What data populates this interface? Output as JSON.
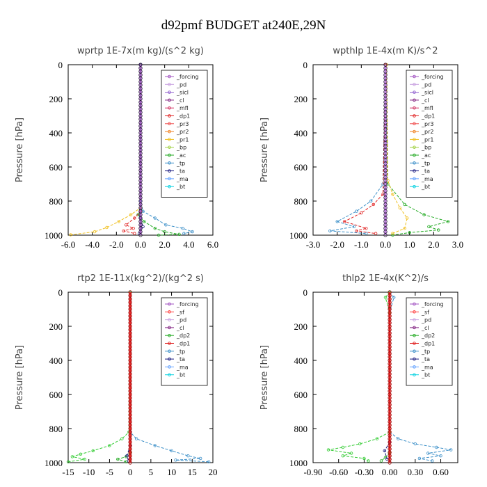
{
  "figure_title": "d92pmf  BUDGET at240E,29N",
  "chart_data": [
    {
      "type": "line",
      "title": "wprtp  1E-7x(m kg)/(s^2 kg)",
      "ylabel": "Pressure [hPa]",
      "xlim": [
        -6,
        6
      ],
      "ylim": [
        1000,
        0
      ],
      "xticks": [
        -6,
        -4,
        -2,
        0,
        2,
        4,
        6
      ],
      "xtick_labels": [
        "-6.0",
        "-4.0",
        "-2.0",
        "0.0",
        "2.0",
        "4.0",
        "6.0"
      ],
      "yticks": [
        0,
        200,
        400,
        600,
        800,
        1000
      ],
      "ytick_labels": [
        "0",
        "200",
        "400",
        "600",
        "800",
        "1000"
      ],
      "legend": [
        "_forcing",
        "_pd",
        "_sicl",
        "_cl",
        "_mfl",
        "_dp1",
        "_pr3",
        "_pr2",
        "_pr1",
        "_bp",
        "_ac",
        "_tp",
        "_ta",
        "_ma",
        "_bt"
      ],
      "series": [
        {
          "name": "_tp",
          "color": "#3b8fc8",
          "points": [
            [
              0,
              0
            ],
            [
              0,
              800
            ],
            [
              0.2,
              860
            ],
            [
              1.2,
              900
            ],
            [
              2.1,
              940
            ],
            [
              3.5,
              960
            ],
            [
              4.3,
              980
            ],
            [
              3.6,
              990
            ]
          ]
        },
        {
          "name": "_ac",
          "color": "#22aa22",
          "points": [
            [
              0,
              0
            ],
            [
              0,
              850
            ],
            [
              -0.2,
              880
            ],
            [
              0.3,
              920
            ],
            [
              1.2,
              960
            ],
            [
              2.0,
              980
            ],
            [
              3.2,
              995
            ],
            [
              1.5,
              1000
            ]
          ]
        },
        {
          "name": "_pr1",
          "color": "#f0c020",
          "points": [
            [
              0,
              0
            ],
            [
              0,
              840
            ],
            [
              -0.8,
              880
            ],
            [
              -1.8,
              920
            ],
            [
              -2.8,
              955
            ],
            [
              -3.8,
              980
            ],
            [
              -5.8,
              998
            ]
          ]
        },
        {
          "name": "_dp1",
          "color": "#e02020",
          "points": [
            [
              0,
              0
            ],
            [
              0,
              860
            ],
            [
              -0.5,
              900
            ],
            [
              -1.2,
              940
            ],
            [
              -0.6,
              960
            ],
            [
              -1.4,
              975
            ],
            [
              -0.5,
              990
            ]
          ]
        },
        {
          "name": "_ta",
          "color": "#1a1a80",
          "points": [
            [
              0,
              0
            ],
            [
              0,
              900
            ],
            [
              0.2,
              950
            ],
            [
              -0.1,
              990
            ]
          ]
        },
        {
          "name": "_forcing",
          "color": "#a060c0",
          "points": [
            [
              0,
              0
            ],
            [
              0,
              1000
            ]
          ]
        }
      ]
    },
    {
      "type": "line",
      "title": "wpthlp  1E-4x(m K)/s^2",
      "ylabel": "Pressure [hPa]",
      "xlim": [
        -3,
        3
      ],
      "ylim": [
        1000,
        0
      ],
      "xticks": [
        -3,
        -2,
        -1,
        0,
        1,
        2,
        3
      ],
      "xtick_labels": [
        "-3.0",
        "-2.0",
        "-1.0",
        "0.0",
        "1.0",
        "2.0",
        "3.0"
      ],
      "yticks": [
        0,
        200,
        400,
        600,
        800,
        1000
      ],
      "ytick_labels": [
        "0",
        "200",
        "400",
        "600",
        "800",
        "1000"
      ],
      "legend": [
        "_forcing",
        "_pd",
        "_sicl",
        "_cl",
        "_mfl",
        "_dp1",
        "_pr3",
        "_pr2",
        "_pr1",
        "_bp",
        "_ac",
        "_tp",
        "_ta",
        "_ma",
        "_bt"
      ],
      "series": [
        {
          "name": "_ac",
          "color": "#22aa22",
          "points": [
            [
              0,
              0
            ],
            [
              0.1,
              700
            ],
            [
              0.8,
              820
            ],
            [
              1.6,
              880
            ],
            [
              2.6,
              920
            ],
            [
              1.8,
              950
            ],
            [
              2.2,
              970
            ],
            [
              1.0,
              985
            ],
            [
              0.3,
              1000
            ]
          ]
        },
        {
          "name": "_pr1",
          "color": "#f0c020",
          "points": [
            [
              0.05,
              0
            ],
            [
              0.1,
              680
            ],
            [
              0.3,
              760
            ],
            [
              0.6,
              840
            ],
            [
              0.9,
              900
            ],
            [
              0.8,
              960
            ],
            [
              0.3,
              990
            ]
          ]
        },
        {
          "name": "_tp",
          "color": "#3b8fc8",
          "points": [
            [
              0,
              0
            ],
            [
              -0.1,
              700
            ],
            [
              -0.6,
              800
            ],
            [
              -1.2,
              860
            ],
            [
              -2.0,
              920
            ],
            [
              -1.3,
              950
            ],
            [
              -2.3,
              975
            ],
            [
              -0.8,
              990
            ]
          ]
        },
        {
          "name": "_dp1",
          "color": "#e02020",
          "points": [
            [
              0,
              0
            ],
            [
              -0.1,
              760
            ],
            [
              -0.5,
              820
            ],
            [
              -1.0,
              870
            ],
            [
              -1.7,
              920
            ],
            [
              -0.8,
              960
            ],
            [
              -1.2,
              975
            ],
            [
              -0.4,
              990
            ]
          ]
        },
        {
          "name": "_forcing",
          "color": "#c080e0",
          "points": [
            [
              0,
              0
            ],
            [
              0,
              1000
            ]
          ]
        }
      ]
    },
    {
      "type": "line",
      "title": "rtp2  1E-11x(kg^2)/(kg^2 s)",
      "ylabel": "Pressure [hPa]",
      "xlim": [
        -15,
        20
      ],
      "ylim": [
        1000,
        0
      ],
      "xticks": [
        -15,
        -10,
        -5,
        0,
        5,
        10,
        15,
        20
      ],
      "xtick_labels": [
        "-15",
        "-10",
        "-5",
        "0",
        "5",
        "10",
        "15",
        "20"
      ],
      "yticks": [
        0,
        200,
        400,
        600,
        800,
        1000
      ],
      "ytick_labels": [
        "0",
        "200",
        "400",
        "600",
        "800",
        "1000"
      ],
      "legend": [
        "_forcing",
        "_sf",
        "_pd",
        "_cl",
        "_dp2",
        "_dp1",
        "_tp",
        "_ta",
        "_ma",
        "_bt"
      ],
      "series": [
        {
          "name": "_tp",
          "color": "#3b8fc8",
          "points": [
            [
              0,
              0
            ],
            [
              0,
              820
            ],
            [
              1.5,
              860
            ],
            [
              6,
              900
            ],
            [
              10,
              930
            ],
            [
              14,
              960
            ],
            [
              17,
              975
            ],
            [
              11,
              985
            ],
            [
              19,
              995
            ]
          ]
        },
        {
          "name": "_dp1",
          "color": "#33cc33",
          "points": [
            [
              0,
              0
            ],
            [
              -0.3,
              820
            ],
            [
              -2,
              860
            ],
            [
              -5,
              900
            ],
            [
              -9,
              930
            ],
            [
              -12,
              950
            ],
            [
              -14,
              965
            ],
            [
              -11,
              980
            ],
            [
              -15,
              995
            ]
          ]
        },
        {
          "name": "_dp2",
          "color": "#22aa22",
          "points": [
            [
              0,
              940
            ],
            [
              -1,
              965
            ],
            [
              -3,
              980
            ],
            [
              -1,
              995
            ]
          ]
        },
        {
          "name": "_ta",
          "color": "#1a1a80",
          "points": [
            [
              0,
              900
            ],
            [
              -0.8,
              960
            ],
            [
              -0.4,
              990
            ]
          ]
        },
        {
          "name": "_forcing",
          "color": "#e02020",
          "points": [
            [
              0,
              0
            ],
            [
              0,
              1000
            ]
          ]
        }
      ]
    },
    {
      "type": "line",
      "title": "thlp2  1E-4x(K^2)/s",
      "ylabel": "Pressure [hPa]",
      "xlim": [
        -0.9,
        0.8
      ],
      "ylim": [
        1000,
        0
      ],
      "xticks": [
        -0.9,
        -0.6,
        -0.3,
        0,
        0.3,
        0.6
      ],
      "xtick_labels": [
        "-0.90",
        "-0.60",
        "-0.30",
        "0.00",
        "0.30",
        "0.60"
      ],
      "yticks": [
        0,
        200,
        400,
        600,
        800,
        1000
      ],
      "ytick_labels": [
        "0",
        "200",
        "400",
        "600",
        "800",
        "1000"
      ],
      "legend": [
        "_forcing",
        "_sf",
        "_pd",
        "_cl",
        "_dp2",
        "_dp1",
        "_tp",
        "_ta",
        "_ma",
        "_bt"
      ],
      "series": [
        {
          "name": "_tp",
          "color": "#3b8fc8",
          "points": [
            [
              0,
              0
            ],
            [
              0.05,
              30
            ],
            [
              0,
              120
            ],
            [
              0,
              820
            ],
            [
              0.1,
              860
            ],
            [
              0.3,
              890
            ],
            [
              0.55,
              910
            ],
            [
              0.72,
              925
            ],
            [
              0.45,
              945
            ],
            [
              0.6,
              960
            ],
            [
              0.35,
              975
            ],
            [
              0.5,
              990
            ]
          ]
        },
        {
          "name": "_dp1",
          "color": "#33cc33",
          "points": [
            [
              0,
              0
            ],
            [
              -0.05,
              30
            ],
            [
              0,
              120
            ],
            [
              0,
              820
            ],
            [
              -0.15,
              860
            ],
            [
              -0.35,
              890
            ],
            [
              -0.55,
              910
            ],
            [
              -0.72,
              925
            ],
            [
              -0.45,
              945
            ],
            [
              -0.55,
              960
            ],
            [
              -0.3,
              975
            ],
            [
              -0.25,
              990
            ]
          ]
        },
        {
          "name": "_dp2",
          "color": "#22aa22",
          "points": [
            [
              0,
              940
            ],
            [
              -0.05,
              970
            ],
            [
              -0.1,
              990
            ]
          ]
        },
        {
          "name": "_ta",
          "color": "#1a1a80",
          "points": [
            [
              0,
              880
            ],
            [
              -0.06,
              930
            ],
            [
              -0.03,
              980
            ]
          ]
        },
        {
          "name": "_forcing",
          "color": "#e02020",
          "points": [
            [
              0,
              0
            ],
            [
              0,
              1000
            ]
          ]
        }
      ]
    }
  ]
}
